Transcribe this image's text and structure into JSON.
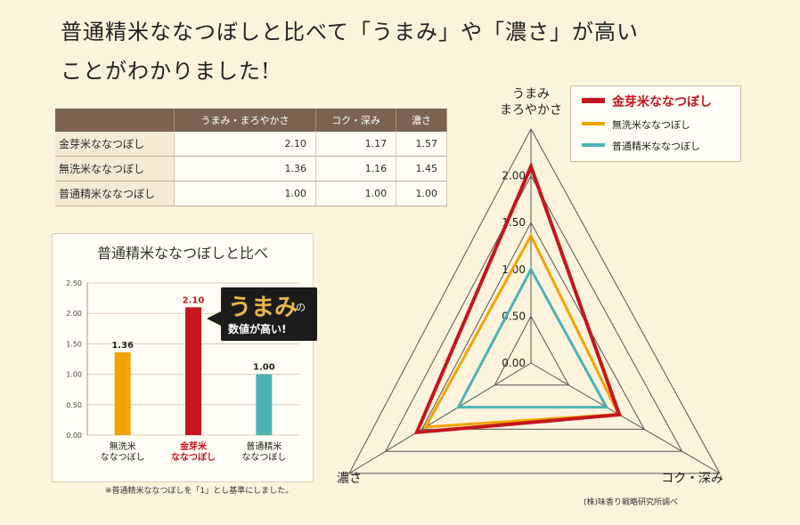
{
  "headline": {
    "line1": "普通精米ななつぼしと比べて「うまみ」や「濃さ」が高い",
    "line2": "ことがわかりました!"
  },
  "table": {
    "headers": [
      "",
      "うまみ・まろやかさ",
      "コク・深み",
      "濃さ"
    ],
    "rows": [
      {
        "label": "金芽米ななつぼし",
        "values": [
          "2.10",
          "1.17",
          "1.57"
        ]
      },
      {
        "label": "無洗米ななつぼし",
        "values": [
          "1.36",
          "1.16",
          "1.45"
        ]
      },
      {
        "label": "普通精米ななつぼし",
        "values": [
          "1.00",
          "1.00",
          "1.00"
        ]
      }
    ]
  },
  "callout": {
    "main": "うまみ",
    "particle": "の",
    "sub": "数値が高い!"
  },
  "bar_note": "※普通精米ななつぼしを「1」とし基準にしました。",
  "credit": "(株)味香り戦略研究所調べ",
  "colors": {
    "kinme": "#c4161c",
    "musenmai": "#f0a400",
    "futsu": "#4bb3b3",
    "header_bg": "#7a6352"
  },
  "chart_data": [
    {
      "type": "bar",
      "title": "普通精米ななつぼしと比べ",
      "categories": [
        "無洗米ななつぼし",
        "金芽米ななつぼし",
        "普通精米ななつぼし"
      ],
      "category_lines": [
        [
          "無洗米",
          "ななつぼし"
        ],
        [
          "金芽米",
          "ななつぼし"
        ],
        [
          "普通精米",
          "ななつぼし"
        ]
      ],
      "values": [
        1.36,
        2.1,
        1.0
      ],
      "value_labels": [
        "1.36",
        "2.10",
        "1.00"
      ],
      "colors": [
        "#f0a400",
        "#c4161c",
        "#4bb3b3"
      ],
      "ylim": [
        0,
        2.5
      ],
      "yticks": [
        "0.00",
        "0.50",
        "1.00",
        "1.50",
        "2.00",
        "2.50"
      ],
      "grid": true
    },
    {
      "type": "radar",
      "axes": [
        "うまみ まろやかさ",
        "コク・深み",
        "濃さ"
      ],
      "axis_label_lines": [
        [
          "うまみ",
          "まろやかさ"
        ],
        [
          "コク・深み"
        ],
        [
          "濃さ"
        ]
      ],
      "rlim": [
        0,
        2.5
      ],
      "ticks": [
        "0.00",
        "0.50",
        "1.00",
        "1.50",
        "2.00"
      ],
      "series": [
        {
          "name": "金芽米ななつぼし",
          "values": [
            2.1,
            1.17,
            1.57
          ],
          "color": "#c4161c"
        },
        {
          "name": "無洗米ななつぼし",
          "values": [
            1.36,
            1.16,
            1.45
          ],
          "color": "#f0a400"
        },
        {
          "name": "普通精米ななつぼし",
          "values": [
            1.0,
            1.0,
            1.0
          ],
          "color": "#4bb3b3"
        }
      ],
      "legend": "top-right"
    }
  ]
}
